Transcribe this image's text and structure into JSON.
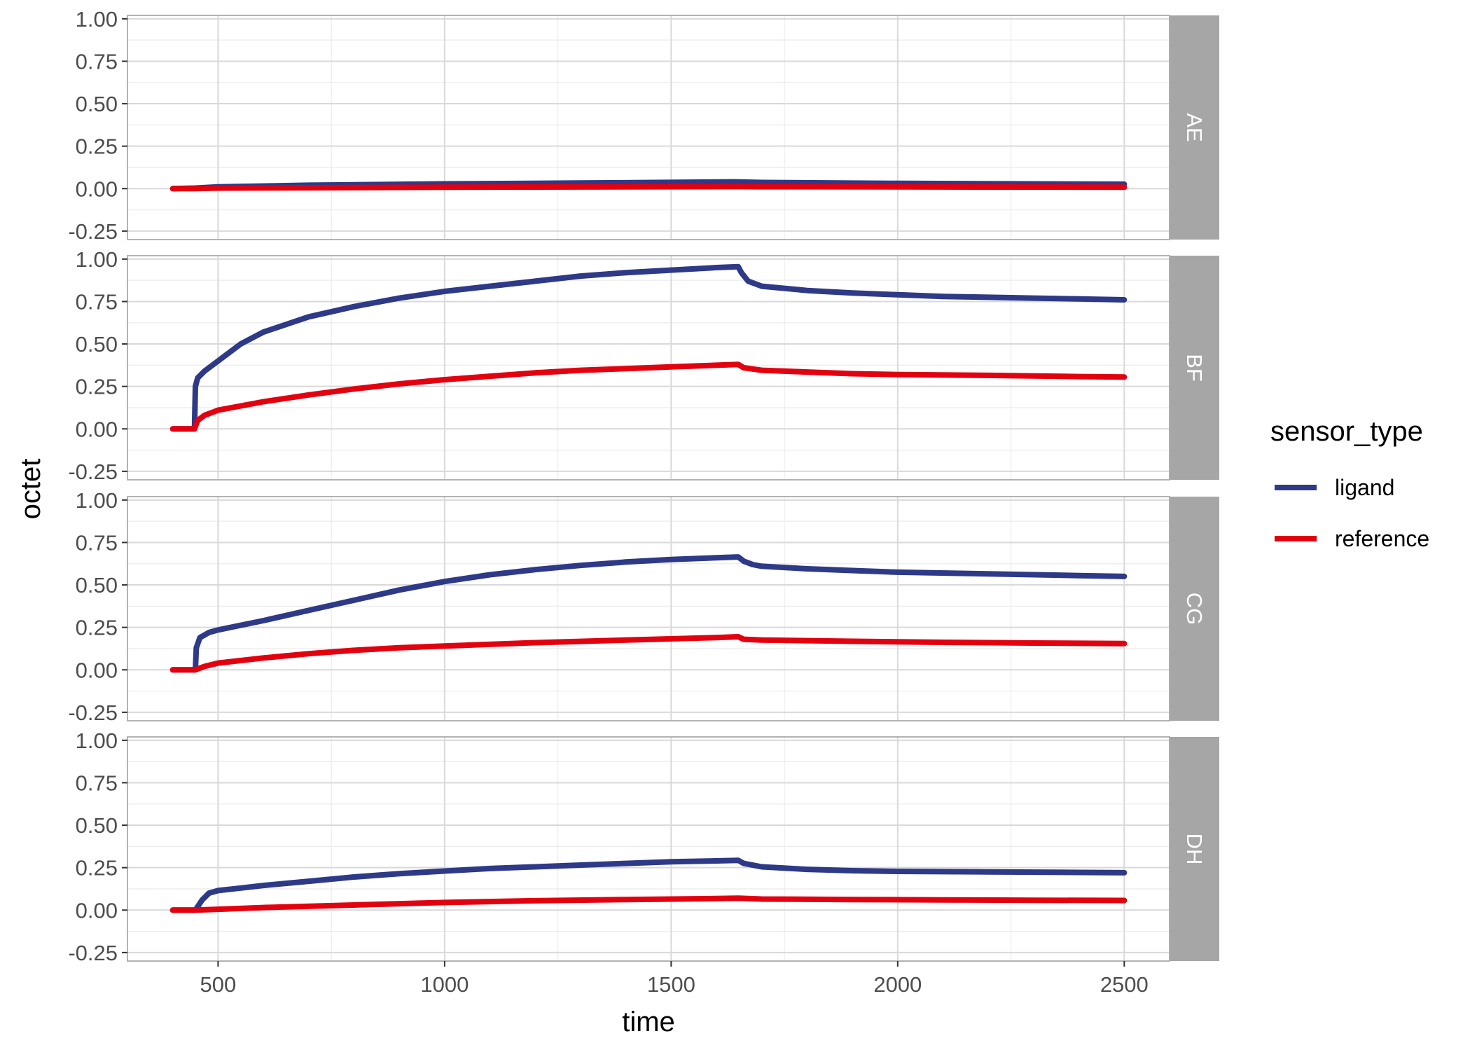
{
  "chart_data": {
    "type": "line",
    "xlabel": "time",
    "ylabel": "octet",
    "xlim": [
      300,
      2600
    ],
    "ylim": [
      -0.3,
      1.02
    ],
    "x_ticks": [
      500,
      1000,
      1500,
      2000,
      2500
    ],
    "x_tick_labels": [
      "500",
      "1000",
      "1500",
      "2000",
      "2500"
    ],
    "y_ticks": [
      -0.25,
      0,
      0.25,
      0.5,
      0.75,
      1.0
    ],
    "y_tick_labels": [
      "-0.25",
      "0.00",
      "0.25",
      "0.50",
      "0.75",
      "1.00"
    ],
    "grid": true,
    "legend": {
      "title": "sensor_type",
      "position": "right",
      "entries": [
        {
          "label": "ligand",
          "color": "#2e3a87"
        },
        {
          "label": "reference",
          "color": "#e3000f"
        }
      ]
    },
    "panels": [
      {
        "label": "AE",
        "series": [
          {
            "name": "ligand",
            "color": "#2e3a87",
            "points": [
              [
                400,
                0
              ],
              [
                450,
                0.003
              ],
              [
                500,
                0.01
              ],
              [
                700,
                0.02
              ],
              [
                1000,
                0.028
              ],
              [
                1300,
                0.033
              ],
              [
                1640,
                0.04
              ],
              [
                1700,
                0.036
              ],
              [
                2000,
                0.031
              ],
              [
                2500,
                0.026
              ]
            ]
          },
          {
            "name": "reference",
            "color": "#e3000f",
            "points": [
              [
                400,
                0
              ],
              [
                450,
                0
              ],
              [
                500,
                0.003
              ],
              [
                1000,
                0.008
              ],
              [
                1640,
                0.012
              ],
              [
                1700,
                0.011
              ],
              [
                2000,
                0.01
              ],
              [
                2500,
                0.008
              ]
            ]
          }
        ]
      },
      {
        "label": "BF",
        "series": [
          {
            "name": "ligand",
            "color": "#2e3a87",
            "points": [
              [
                400,
                0
              ],
              [
                448,
                0
              ],
              [
                450,
                0.25
              ],
              [
                455,
                0.3
              ],
              [
                470,
                0.34
              ],
              [
                500,
                0.4
              ],
              [
                550,
                0.5
              ],
              [
                600,
                0.57
              ],
              [
                700,
                0.66
              ],
              [
                800,
                0.72
              ],
              [
                900,
                0.77
              ],
              [
                1000,
                0.81
              ],
              [
                1100,
                0.84
              ],
              [
                1200,
                0.87
              ],
              [
                1300,
                0.9
              ],
              [
                1400,
                0.92
              ],
              [
                1500,
                0.935
              ],
              [
                1600,
                0.95
              ],
              [
                1648,
                0.955
              ],
              [
                1655,
                0.92
              ],
              [
                1670,
                0.87
              ],
              [
                1700,
                0.84
              ],
              [
                1800,
                0.815
              ],
              [
                1900,
                0.8
              ],
              [
                2000,
                0.79
              ],
              [
                2100,
                0.78
              ],
              [
                2200,
                0.775
              ],
              [
                2300,
                0.77
              ],
              [
                2400,
                0.765
              ],
              [
                2500,
                0.76
              ]
            ]
          },
          {
            "name": "reference",
            "color": "#e3000f",
            "points": [
              [
                400,
                0
              ],
              [
                448,
                0
              ],
              [
                455,
                0.05
              ],
              [
                470,
                0.08
              ],
              [
                500,
                0.11
              ],
              [
                600,
                0.16
              ],
              [
                700,
                0.2
              ],
              [
                800,
                0.235
              ],
              [
                900,
                0.265
              ],
              [
                1000,
                0.29
              ],
              [
                1100,
                0.31
              ],
              [
                1200,
                0.33
              ],
              [
                1300,
                0.345
              ],
              [
                1400,
                0.355
              ],
              [
                1500,
                0.365
              ],
              [
                1600,
                0.375
              ],
              [
                1648,
                0.38
              ],
              [
                1660,
                0.36
              ],
              [
                1700,
                0.345
              ],
              [
                1800,
                0.335
              ],
              [
                1900,
                0.325
              ],
              [
                2000,
                0.32
              ],
              [
                2200,
                0.315
              ],
              [
                2400,
                0.308
              ],
              [
                2500,
                0.305
              ]
            ]
          }
        ]
      },
      {
        "label": "CG",
        "series": [
          {
            "name": "ligand",
            "color": "#2e3a87",
            "points": [
              [
                400,
                0
              ],
              [
                450,
                0
              ],
              [
                452,
                0.13
              ],
              [
                460,
                0.19
              ],
              [
                480,
                0.22
              ],
              [
                500,
                0.235
              ],
              [
                600,
                0.29
              ],
              [
                700,
                0.35
              ],
              [
                800,
                0.41
              ],
              [
                900,
                0.47
              ],
              [
                1000,
                0.52
              ],
              [
                1100,
                0.56
              ],
              [
                1200,
                0.59
              ],
              [
                1300,
                0.615
              ],
              [
                1400,
                0.635
              ],
              [
                1500,
                0.65
              ],
              [
                1600,
                0.66
              ],
              [
                1648,
                0.665
              ],
              [
                1660,
                0.64
              ],
              [
                1680,
                0.62
              ],
              [
                1700,
                0.61
              ],
              [
                1800,
                0.595
              ],
              [
                1900,
                0.585
              ],
              [
                2000,
                0.575
              ],
              [
                2200,
                0.565
              ],
              [
                2400,
                0.555
              ],
              [
                2500,
                0.55
              ]
            ]
          },
          {
            "name": "reference",
            "color": "#e3000f",
            "points": [
              [
                400,
                0
              ],
              [
                450,
                0
              ],
              [
                470,
                0.02
              ],
              [
                500,
                0.04
              ],
              [
                600,
                0.07
              ],
              [
                700,
                0.095
              ],
              [
                800,
                0.115
              ],
              [
                900,
                0.13
              ],
              [
                1000,
                0.14
              ],
              [
                1200,
                0.16
              ],
              [
                1400,
                0.175
              ],
              [
                1600,
                0.19
              ],
              [
                1648,
                0.195
              ],
              [
                1660,
                0.18
              ],
              [
                1700,
                0.175
              ],
              [
                1900,
                0.168
              ],
              [
                2100,
                0.162
              ],
              [
                2300,
                0.158
              ],
              [
                2500,
                0.155
              ]
            ]
          }
        ]
      },
      {
        "label": "DH",
        "series": [
          {
            "name": "ligand",
            "color": "#2e3a87",
            "points": [
              [
                400,
                0
              ],
              [
                450,
                0
              ],
              [
                465,
                0.06
              ],
              [
                480,
                0.1
              ],
              [
                500,
                0.115
              ],
              [
                550,
                0.13
              ],
              [
                600,
                0.145
              ],
              [
                700,
                0.17
              ],
              [
                800,
                0.195
              ],
              [
                900,
                0.215
              ],
              [
                1000,
                0.23
              ],
              [
                1100,
                0.245
              ],
              [
                1200,
                0.255
              ],
              [
                1300,
                0.265
              ],
              [
                1400,
                0.275
              ],
              [
                1500,
                0.285
              ],
              [
                1600,
                0.29
              ],
              [
                1648,
                0.293
              ],
              [
                1660,
                0.275
              ],
              [
                1700,
                0.255
              ],
              [
                1800,
                0.24
              ],
              [
                1900,
                0.232
              ],
              [
                2000,
                0.228
              ],
              [
                2200,
                0.225
              ],
              [
                2400,
                0.222
              ],
              [
                2500,
                0.22
              ]
            ]
          },
          {
            "name": "reference",
            "color": "#e3000f",
            "points": [
              [
                400,
                0
              ],
              [
                450,
                0
              ],
              [
                500,
                0.005
              ],
              [
                600,
                0.015
              ],
              [
                800,
                0.03
              ],
              [
                1000,
                0.045
              ],
              [
                1200,
                0.055
              ],
              [
                1400,
                0.062
              ],
              [
                1600,
                0.068
              ],
              [
                1648,
                0.07
              ],
              [
                1700,
                0.065
              ],
              [
                1900,
                0.062
              ],
              [
                2100,
                0.06
              ],
              [
                2300,
                0.058
              ],
              [
                2500,
                0.057
              ]
            ]
          }
        ]
      }
    ]
  }
}
